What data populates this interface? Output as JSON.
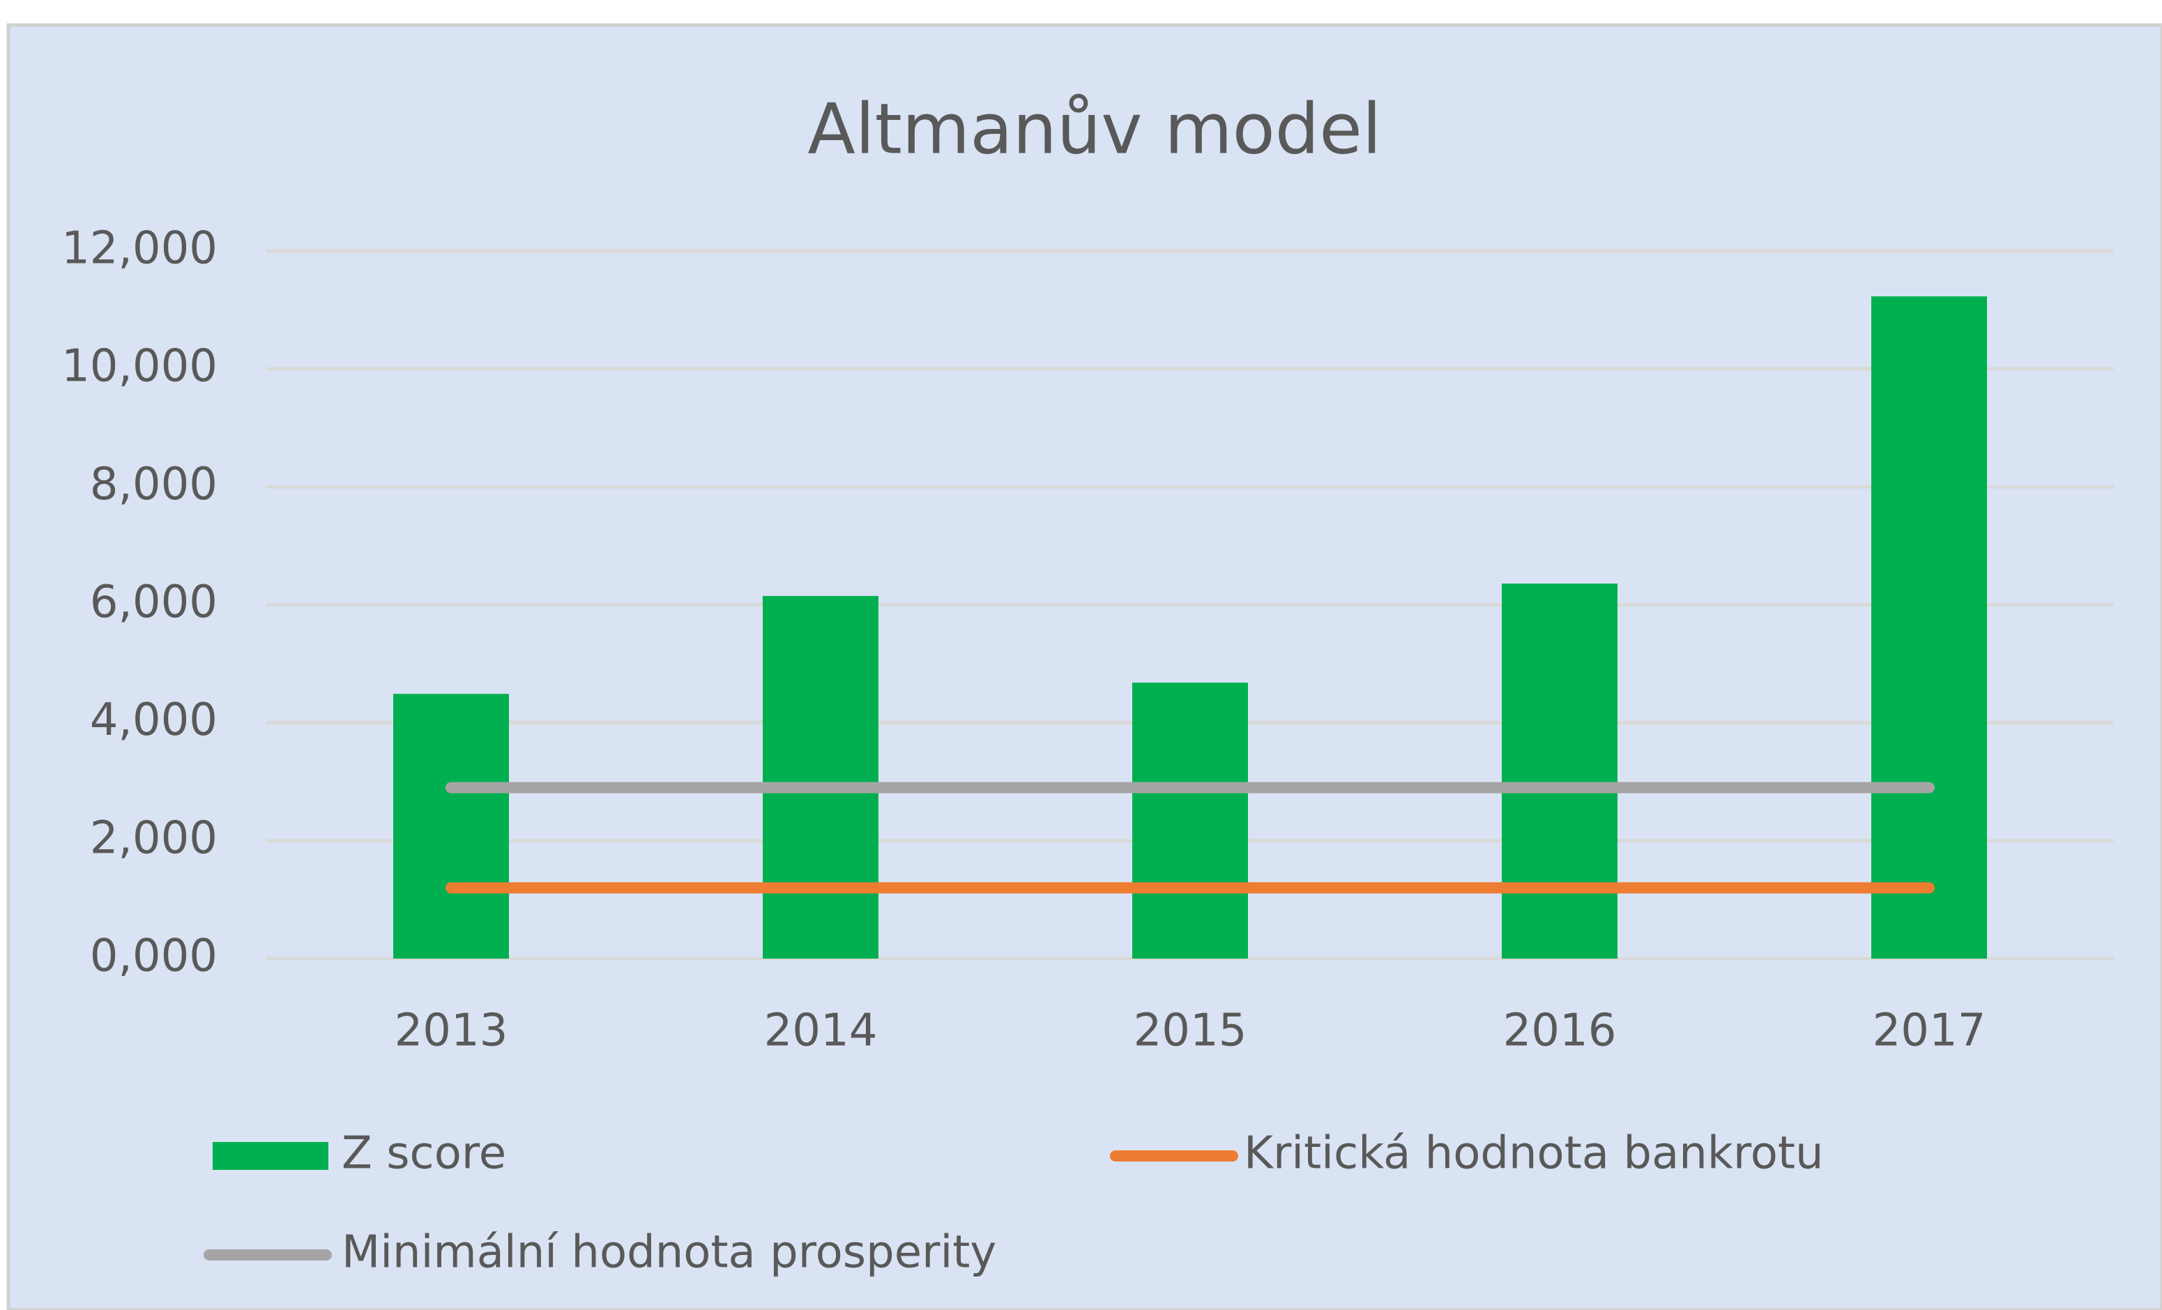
{
  "chart_data": {
    "type": "bar",
    "title": "Altmanův model",
    "categories": [
      "2013",
      "2014",
      "2015",
      "2016",
      "2017"
    ],
    "series": [
      {
        "name": "Z score",
        "type": "bar",
        "color": "#00b050",
        "values": [
          4.49,
          6.15,
          4.68,
          6.36,
          11.23
        ]
      },
      {
        "name": "Kritická hodnota bankrotu",
        "type": "line",
        "color": "#ed7d31",
        "values": [
          1.2,
          1.2,
          1.2,
          1.2,
          1.2
        ]
      },
      {
        "name": "Minimální hodnota prosperity",
        "type": "line",
        "color": "#a5a5a5",
        "values": [
          2.9,
          2.9,
          2.9,
          2.9,
          2.9
        ]
      }
    ],
    "ylim": [
      0,
      12
    ],
    "yticks": [
      {
        "value": 0,
        "label": "0,000"
      },
      {
        "value": 2,
        "label": "2,000"
      },
      {
        "value": 4,
        "label": "4,000"
      },
      {
        "value": 6,
        "label": "6,000"
      },
      {
        "value": 8,
        "label": "8,000"
      },
      {
        "value": 10,
        "label": "10,000"
      },
      {
        "value": 12,
        "label": "12,000"
      }
    ],
    "grid": true
  }
}
